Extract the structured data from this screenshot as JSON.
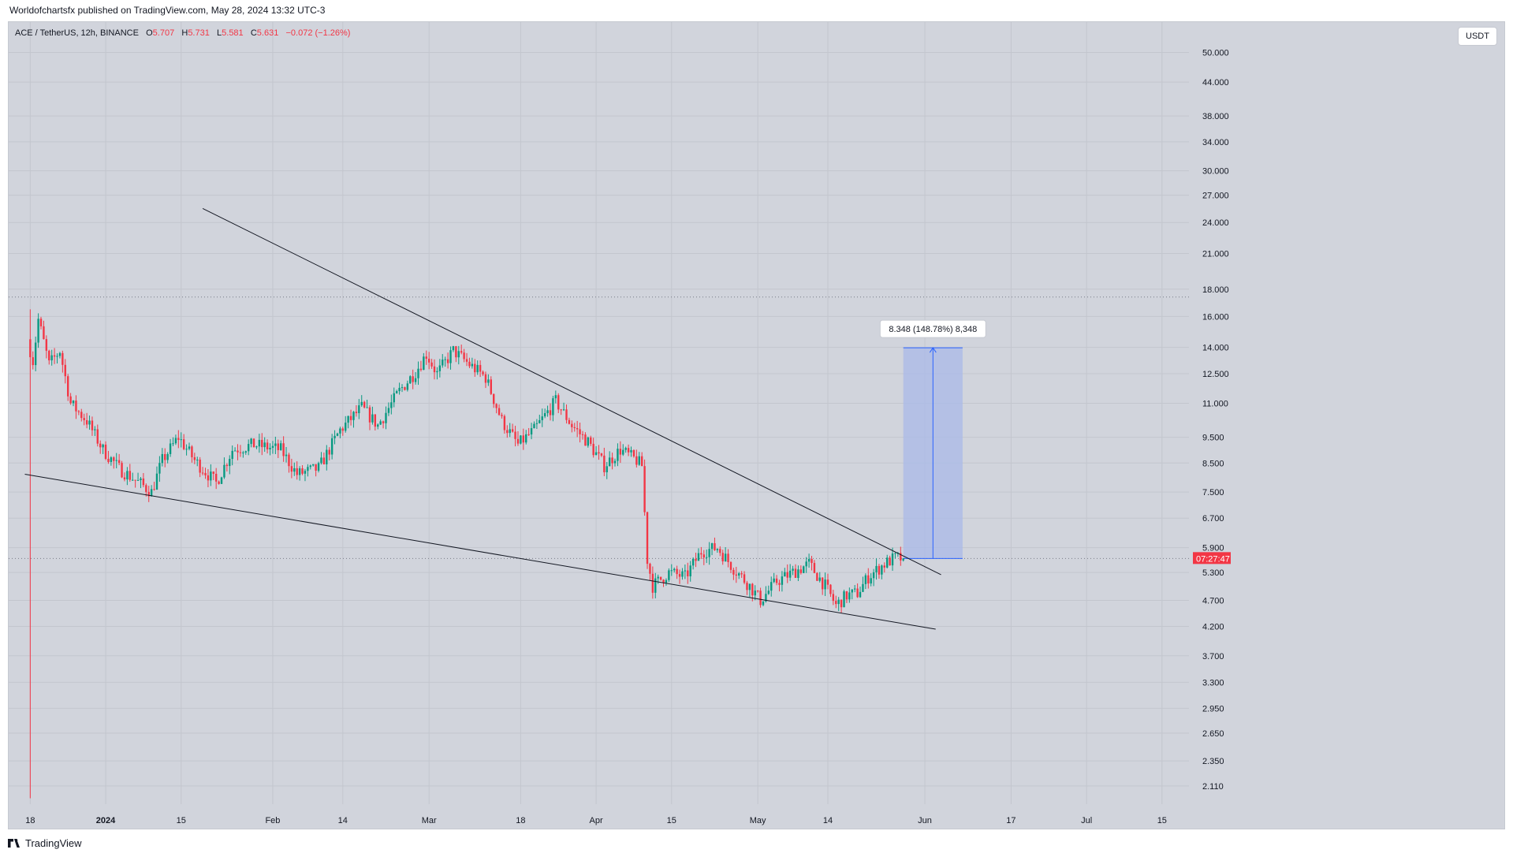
{
  "header": {
    "published": "Worldofchartsfx published on TradingView.com, May 28, 2024 13:32 UTC-3"
  },
  "legend": {
    "symbol": "ACE / TetherUS, 12h, BINANCE",
    "open_label": "O",
    "open": "5.707",
    "high_label": "H",
    "high": "5.731",
    "low_label": "L",
    "low": "5.581",
    "close_label": "C",
    "close": "5.631",
    "change": "−0.072 (−1.26%)"
  },
  "currency_button": "USDT",
  "footer": {
    "logo_text": "TradingView",
    "logo_icon": "tradingview-logo-icon"
  },
  "colors": {
    "up": "#089981",
    "down": "#f23645",
    "range_fill": "#a9b9e8",
    "range_line": "#2962ff",
    "background": "#d1d4dc"
  },
  "chart_data": {
    "type": "candlestick",
    "y_scale": "log",
    "ylim": [
      1.95,
      57
    ],
    "y_ticks": [
      "2.110",
      "2.350",
      "2.650",
      "2.950",
      "3.300",
      "3.700",
      "4.200",
      "4.700",
      "5.300",
      "5.900",
      "6.700",
      "7.500",
      "8.500",
      "9.500",
      "11.000",
      "12.500",
      "14.000",
      "16.000",
      "18.000",
      "21.000",
      "24.000",
      "27.000",
      "30.000",
      "34.000",
      "38.000",
      "44.000",
      "50.000"
    ],
    "x_ticks": [
      "18",
      "2024",
      "15",
      "Feb",
      "14",
      "Mar",
      "18",
      "Apr",
      "15",
      "May",
      "14",
      "Jun",
      "17",
      "Jul",
      "15"
    ],
    "x_range": [
      "2023-12-14",
      "2024-07-20"
    ],
    "current_price": {
      "value": 5.631,
      "label": "07:27:47"
    },
    "reference_level": 17.4,
    "trend_lines": [
      {
        "from": [
          "2024-01-19",
          25.5
        ],
        "to": [
          "2024-06-04",
          5.25
        ]
      },
      {
        "from": [
          "2023-12-17",
          8.1
        ],
        "to": [
          "2024-06-03",
          4.15
        ]
      }
    ],
    "price_range_measure": {
      "from": 5.631,
      "to": 13.979,
      "change": "8.348",
      "percent": "148.78%",
      "label": "8.348 (148.78%) 8,348"
    },
    "price_path": [
      [
        "2023-12-18",
        14.5
      ],
      [
        "2023-12-19",
        13.2
      ],
      [
        "2023-12-20",
        15.8
      ],
      [
        "2023-12-22",
        13.0
      ],
      [
        "2023-12-24",
        13.8
      ],
      [
        "2023-12-26",
        11.0
      ],
      [
        "2023-12-29",
        10.2
      ],
      [
        "2024-01-01",
        9.0
      ],
      [
        "2024-01-04",
        8.3
      ],
      [
        "2024-01-07",
        7.9
      ],
      [
        "2024-01-10",
        7.5
      ],
      [
        "2024-01-12",
        8.6
      ],
      [
        "2024-01-15",
        9.5
      ],
      [
        "2024-01-18",
        8.6
      ],
      [
        "2024-01-22",
        7.8
      ],
      [
        "2024-01-25",
        9.0
      ],
      [
        "2024-01-29",
        9.2
      ],
      [
        "2024-02-03",
        9.0
      ],
      [
        "2024-02-06",
        8.1
      ],
      [
        "2024-02-10",
        8.3
      ],
      [
        "2024-02-14",
        9.8
      ],
      [
        "2024-02-18",
        10.8
      ],
      [
        "2024-02-21",
        10.0
      ],
      [
        "2024-02-25",
        11.6
      ],
      [
        "2024-02-28",
        12.6
      ],
      [
        "2024-03-01",
        13.6
      ],
      [
        "2024-03-03",
        12.5
      ],
      [
        "2024-03-06",
        13.8
      ],
      [
        "2024-03-09",
        13.0
      ],
      [
        "2024-03-12",
        12.3
      ],
      [
        "2024-03-15",
        10.2
      ],
      [
        "2024-03-18",
        9.2
      ],
      [
        "2024-03-21",
        9.8
      ],
      [
        "2024-03-25",
        11.1
      ],
      [
        "2024-03-28",
        10.0
      ],
      [
        "2024-03-31",
        9.3
      ],
      [
        "2024-04-03",
        8.4
      ],
      [
        "2024-04-06",
        9.0
      ],
      [
        "2024-04-09",
        8.6
      ],
      [
        "2024-04-10",
        8.4
      ],
      [
        "2024-04-11",
        5.6
      ],
      [
        "2024-04-12",
        5.0
      ],
      [
        "2024-04-15",
        5.3
      ],
      [
        "2024-04-18",
        5.2
      ],
      [
        "2024-04-21",
        5.8
      ],
      [
        "2024-04-24",
        5.9
      ],
      [
        "2024-04-27",
        5.4
      ],
      [
        "2024-04-30",
        5.0
      ],
      [
        "2024-05-02",
        4.7
      ],
      [
        "2024-05-05",
        5.1
      ],
      [
        "2024-05-08",
        5.3
      ],
      [
        "2024-05-11",
        5.5
      ],
      [
        "2024-05-14",
        5.0
      ],
      [
        "2024-05-16",
        4.6
      ],
      [
        "2024-05-18",
        4.8
      ],
      [
        "2024-05-20",
        4.85
      ],
      [
        "2024-05-22",
        5.2
      ],
      [
        "2024-05-25",
        5.5
      ],
      [
        "2024-05-27",
        5.65
      ],
      [
        "2024-05-28",
        5.63
      ]
    ]
  }
}
